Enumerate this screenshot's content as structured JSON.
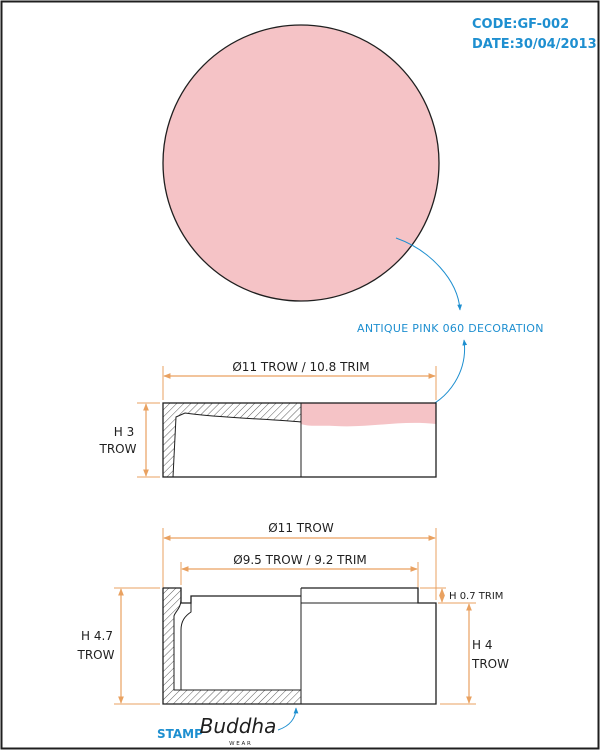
{
  "header": {
    "code": "CODE:GF-002",
    "date": "DATE:30/04/2013"
  },
  "annotations": {
    "decoration": "ANTIQUE PINK 060 DECORATION",
    "stamp_label": "STAMP",
    "stamp_logo": "Buddha",
    "stamp_logo_sub": "W E A R"
  },
  "lid": {
    "diameter": "Ø11 TROW / 10.8 TRIM",
    "height_line1": "H 3",
    "height_line2": "TROW"
  },
  "base": {
    "outer_diameter": "Ø11 TROW",
    "inner_diameter": "Ø9.5 TROW / 9.2 TRIM",
    "rim_height": "H 0.7 TRIM",
    "height_left_line1": "H 4.7",
    "height_left_line2": "TROW",
    "height_right_line1": "H 4",
    "height_right_line2": "TROW"
  },
  "colors": {
    "accent_blue": "#1e8fd0",
    "dimension_orange": "#e9a160",
    "decoration_pink": "#f5c3c6",
    "outline": "#1f1f1f"
  }
}
